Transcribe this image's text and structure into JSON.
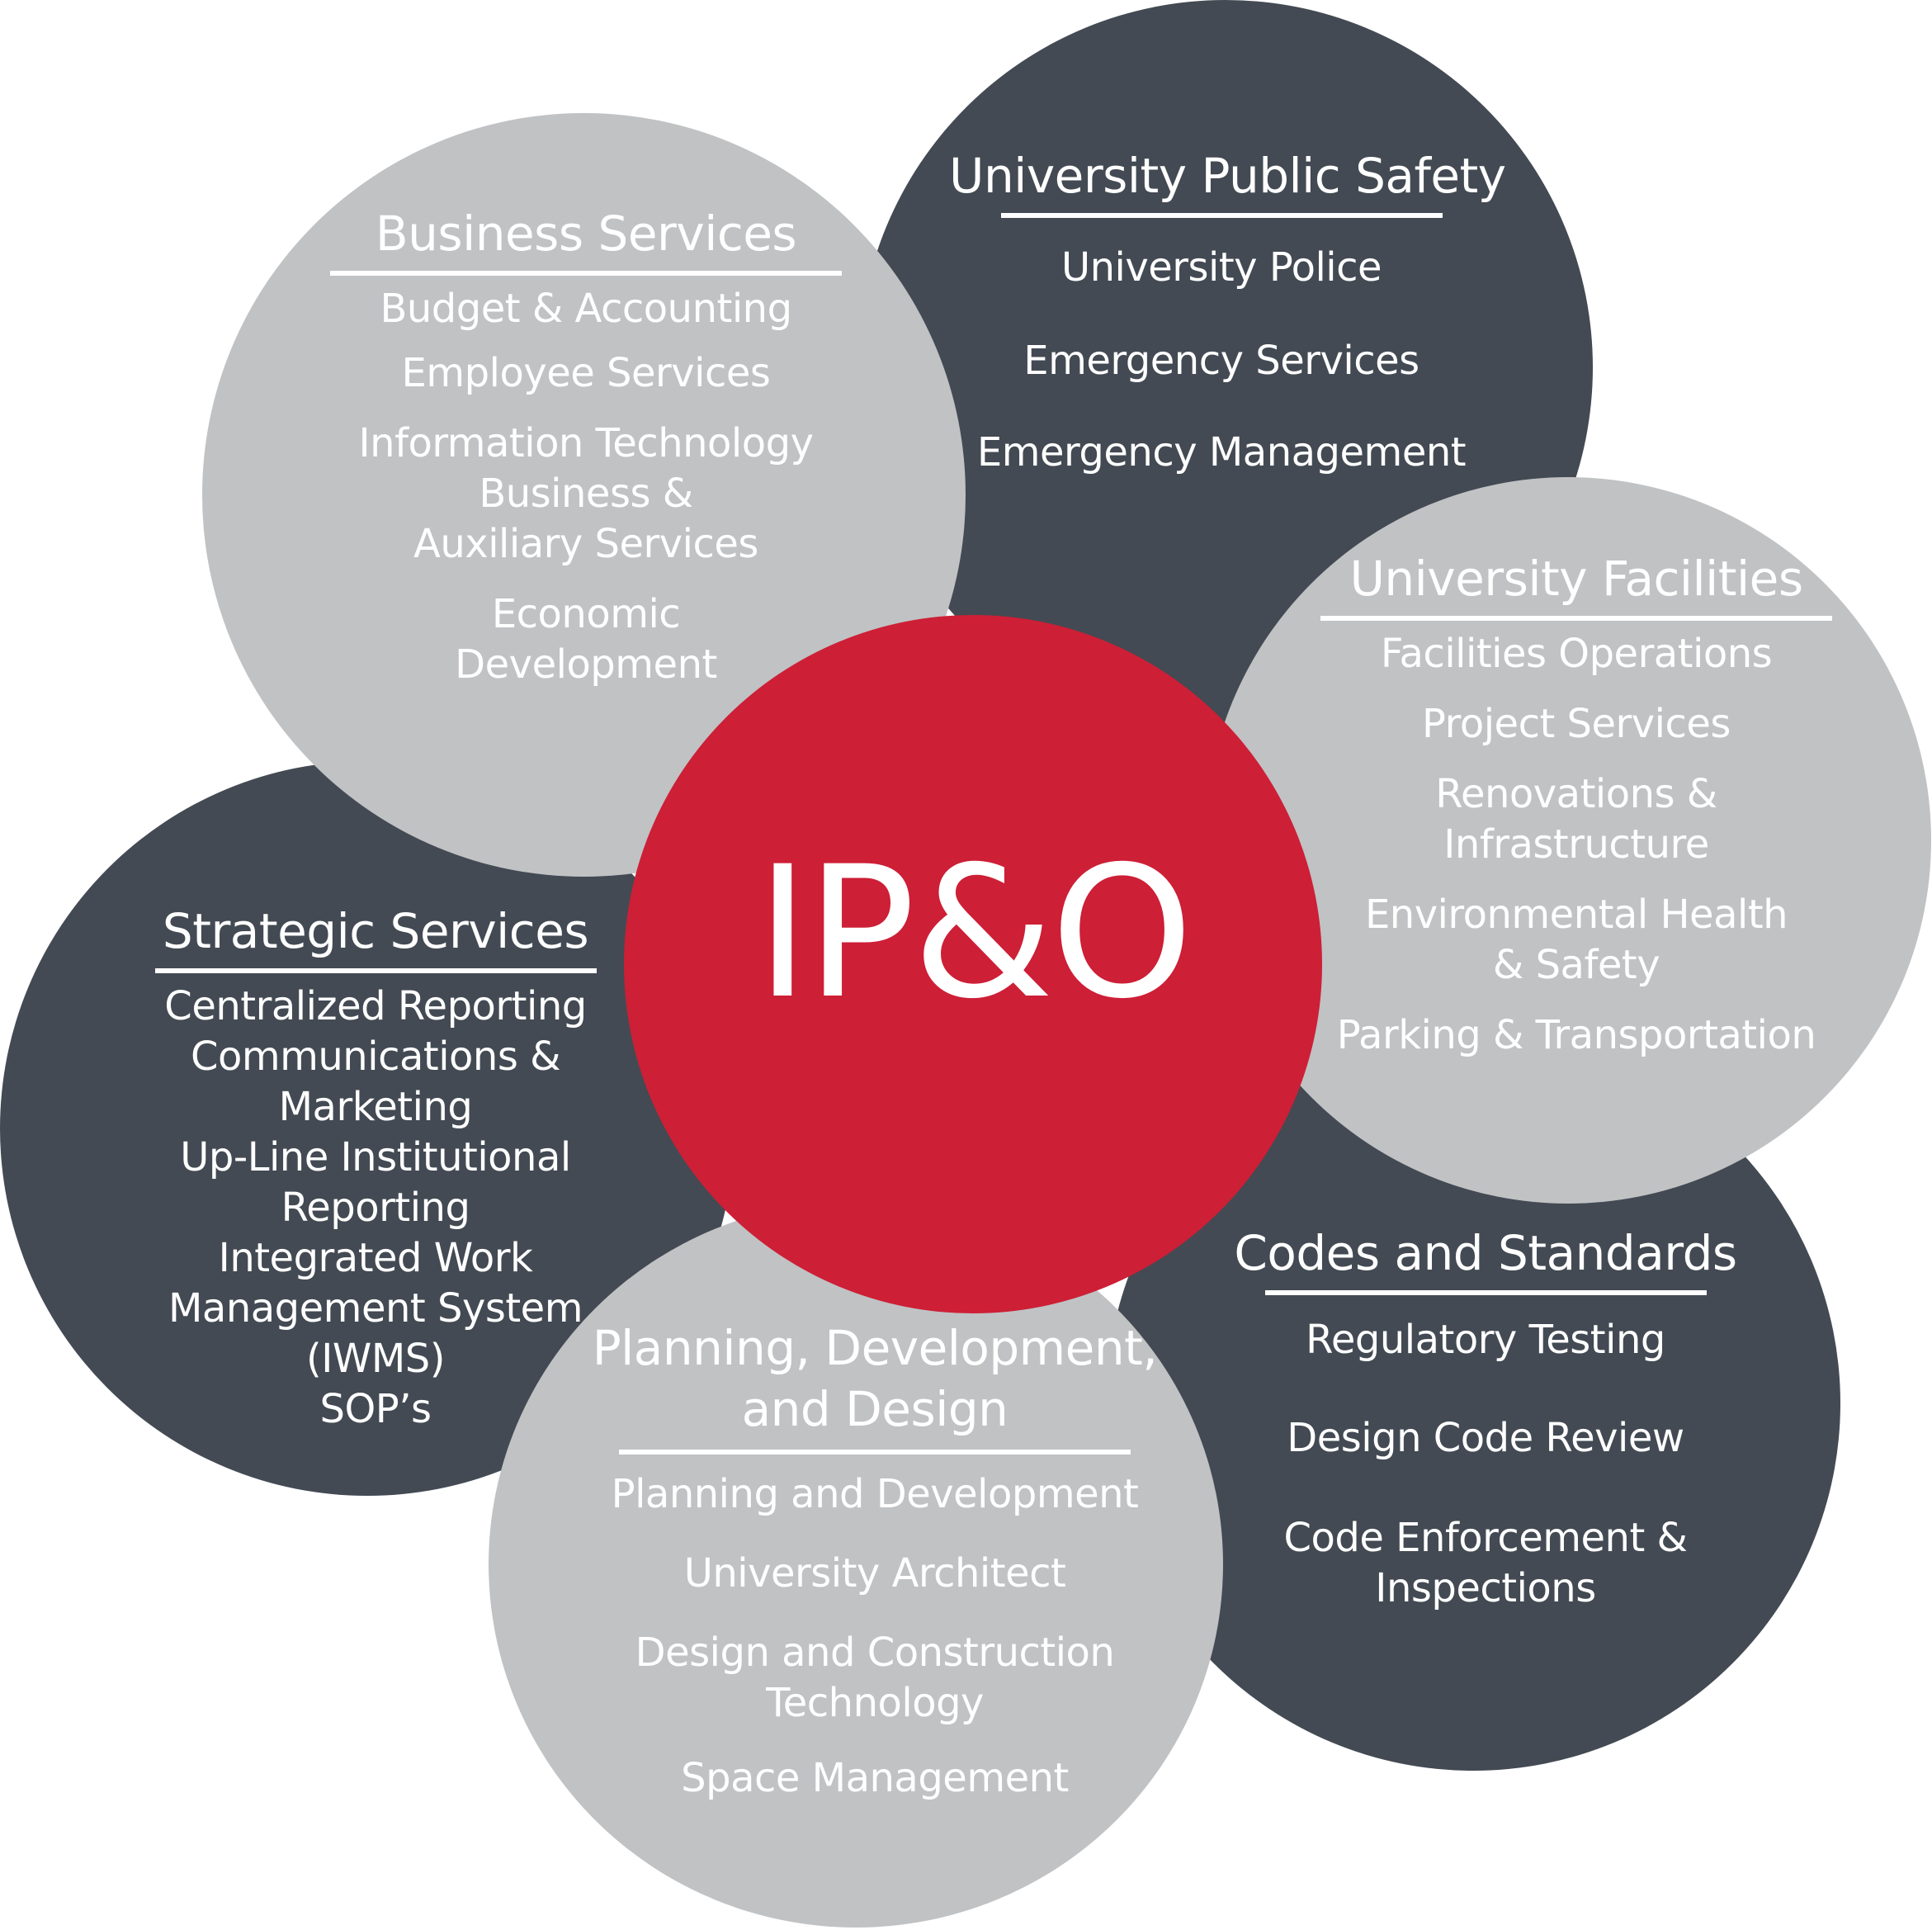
{
  "center": {
    "label": "IP&O"
  },
  "colors": {
    "dark_circle": "#434a53",
    "light_circle": "#c0c2c4",
    "center_circle": "#cd1f36",
    "text": "#ffffff"
  },
  "groups": {
    "public_safety": {
      "title": "University Public Safety",
      "items": [
        "University Police",
        "Emergency Services",
        "Emergency Management"
      ]
    },
    "business_services": {
      "title": "Business Services",
      "items": [
        "Budget & Accounting",
        "Employee Services",
        "Information Technology",
        "Business &\nAuxiliary Services",
        "Economic\nDevelopment"
      ]
    },
    "facilities": {
      "title": "University Facilities",
      "items": [
        "Facilities Operations",
        "Project Services",
        "Renovations &\nInfrastructure",
        "Environmental Health\n& Safety",
        "Parking & Transportation"
      ]
    },
    "strategic_services": {
      "title": "Strategic Services",
      "items": [
        "Centralized Reporting",
        "Communications &\nMarketing",
        "Up-Line Institutional\nReporting",
        "Integrated Work\nManagement System\n(IWMS)",
        "SOP’s"
      ]
    },
    "codes_standards": {
      "title": "Codes and Standards",
      "items": [
        "Regulatory Testing",
        "Design Code Review",
        "Code Enforcement &\nInspections"
      ]
    },
    "planning": {
      "title": "Planning, Development,\nand Design",
      "items": [
        "Planning and Development",
        "University Architect",
        "Design and Construction\nTechnology",
        "Space Management"
      ]
    }
  }
}
